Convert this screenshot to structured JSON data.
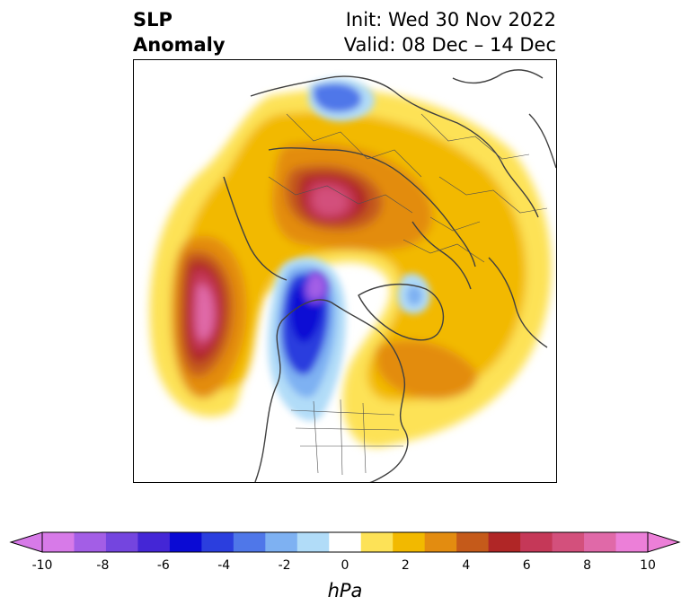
{
  "title": {
    "left_line1": "SLP",
    "left_line2": "Anomaly",
    "right_line1": "Init: Wed 30 Nov 2022",
    "right_line2": "Valid: 08 Dec – 14 Dec"
  },
  "colorbar": {
    "unit": "hPa",
    "tick_labels": [
      "-10",
      "-8",
      "-6",
      "-4",
      "-2",
      "0",
      "2",
      "4",
      "6",
      "8",
      "10"
    ],
    "colors": [
      "#d77ae8",
      "#a35ee6",
      "#7445df",
      "#4426d6",
      "#0a0ad4",
      "#2b3ede",
      "#4f77e9",
      "#7eb1f2",
      "#b1dcf8",
      "#ffffff",
      "#fde257",
      "#f2b900",
      "#e38c10",
      "#c55a1a",
      "#b02626",
      "#c53858",
      "#d3507c",
      "#e069a8",
      "#ec7fd8"
    ]
  },
  "map": {
    "projection": "north-polar-stereographic",
    "field": "sea level pressure anomaly"
  }
}
